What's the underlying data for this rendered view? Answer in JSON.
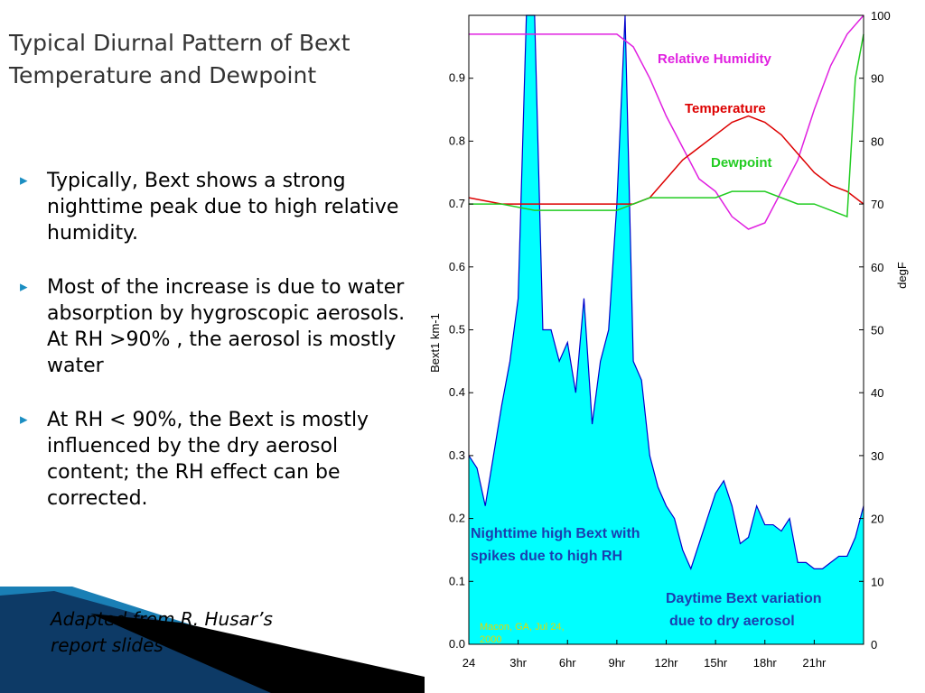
{
  "slide": {
    "title": [
      "Typical Diurnal Pattern of Bext",
      "Temperature and Dewpoint"
    ],
    "bullets": [
      "Typically, Bext shows a strong nighttime peak due to high relative humidity.",
      "Most of the increase is due to water absorption by hygroscopic aerosols. At RH >90% , the aerosol is mostly water",
      "At RH < 90%, the Bext is mostly influenced by the dry aerosol content; the RH effect can be corrected."
    ],
    "credit": [
      "Adapted from R. Husar’s",
      "report slides"
    ]
  },
  "chart_data": {
    "type": "area-line",
    "ylabel": "Bext1   km-1",
    "y2label": "degF",
    "xlim": [
      0,
      24
    ],
    "xticks": [
      {
        "value": 0,
        "label": "24"
      },
      {
        "value": 3,
        "label": "3hr"
      },
      {
        "value": 6,
        "label": "6hr"
      },
      {
        "value": 9,
        "label": "9hr"
      },
      {
        "value": 12,
        "label": "12hr"
      },
      {
        "value": 15,
        "label": "15hr"
      },
      {
        "value": 18,
        "label": "18hr"
      },
      {
        "value": 21,
        "label": "21hr"
      }
    ],
    "ylim": [
      0,
      1
    ],
    "yticks": [
      {
        "value": 0,
        "label": "0.0"
      },
      0.1,
      0.2,
      0.3,
      0.4,
      0.5,
      0.6,
      0.7,
      0.8,
      0.9
    ],
    "y2lim": [
      0,
      100
    ],
    "y2ticks": [
      0,
      10,
      20,
      30,
      40,
      50,
      60,
      70,
      80,
      90,
      100
    ],
    "series": [
      {
        "name": "Bext",
        "color": "#0000cc",
        "fill": "#00ffff",
        "x": [
          0,
          0.5,
          1,
          1.5,
          2,
          2.5,
          3,
          3.5,
          4,
          4.5,
          5,
          5.5,
          6,
          6.5,
          7,
          7.5,
          8,
          8.5,
          9,
          9.5,
          10,
          10.5,
          11,
          11.5,
          12,
          12.5,
          13,
          13.5,
          14,
          14.5,
          15,
          15.5,
          16,
          16.5,
          17,
          17.5,
          18,
          18.5,
          19,
          19.5,
          20,
          20.5,
          21,
          21.5,
          22,
          22.5,
          23,
          23.5,
          24
        ],
        "values": [
          0.3,
          0.28,
          0.22,
          0.3,
          0.38,
          0.45,
          0.55,
          1,
          1,
          0.5,
          0.5,
          0.45,
          0.48,
          0.4,
          0.55,
          0.35,
          0.45,
          0.5,
          0.7,
          1,
          0.45,
          0.42,
          0.3,
          0.25,
          0.22,
          0.2,
          0.15,
          0.12,
          0.16,
          0.2,
          0.24,
          0.26,
          0.22,
          0.16,
          0.17,
          0.22,
          0.19,
          0.19,
          0.18,
          0.2,
          0.13,
          0.13,
          0.12,
          0.12,
          0.13,
          0.14,
          0.14,
          0.17,
          0.22
        ]
      },
      {
        "name": "Relative Humidity",
        "color": "#e020e0",
        "axis": "y2",
        "x": [
          0,
          1,
          2,
          3,
          4,
          5,
          6,
          7,
          8,
          9,
          10,
          11,
          12,
          13,
          14,
          15,
          16,
          17,
          18,
          19,
          20,
          21,
          22,
          23,
          24
        ],
        "values": [
          97,
          97,
          97,
          97,
          97,
          97,
          97,
          97,
          97,
          97,
          95,
          90,
          84,
          79,
          74,
          72,
          68,
          66,
          67,
          72,
          77,
          85,
          92,
          97,
          100
        ]
      },
      {
        "name": "Temperature",
        "color": "#dd0000",
        "axis": "y2",
        "x": [
          0,
          2,
          4,
          6,
          8,
          9,
          10,
          11,
          12,
          13,
          14,
          15,
          16,
          17,
          18,
          19,
          20,
          21,
          22,
          23,
          24
        ],
        "values": [
          71,
          70,
          70,
          70,
          70,
          70,
          70,
          71,
          74,
          77,
          79,
          81,
          83,
          84,
          83,
          81,
          78,
          75,
          73,
          72,
          70
        ]
      },
      {
        "name": "Dewpoint",
        "color": "#22cc22",
        "axis": "y2",
        "x": [
          0,
          2,
          4,
          6,
          8,
          9,
          10,
          11,
          12,
          13,
          14,
          15,
          16,
          17,
          18,
          19,
          20,
          21,
          22,
          23,
          23.5,
          24
        ],
        "values": [
          70,
          70,
          69,
          69,
          69,
          69,
          70,
          71,
          71,
          71,
          71,
          71,
          72,
          72,
          72,
          71,
          70,
          70,
          69,
          68,
          90,
          97
        ]
      }
    ],
    "annotations": [
      "Nighttime high Bext with",
      "spikes due to high RH",
      "Daytime Bext variation",
      "due to dry aerosol",
      "Macon, GA, Jul 24,",
      "2000"
    ]
  }
}
